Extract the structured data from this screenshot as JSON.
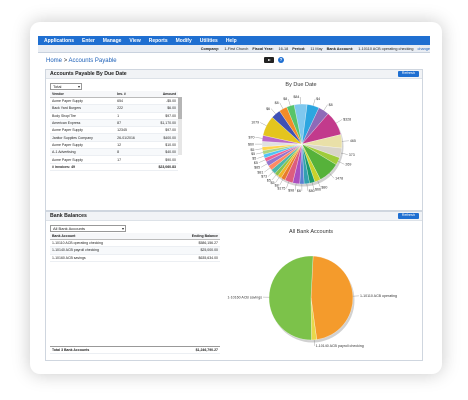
{
  "menu": [
    "Applications",
    "Enter",
    "Manage",
    "View",
    "Reports",
    "Modify",
    "Utilities",
    "Help"
  ],
  "info": {
    "company_label": "Company:",
    "company": "1-First Church",
    "fy_label": "Fiscal Year:",
    "fy": "16-18",
    "period_label": "Period:",
    "period": "11 May",
    "bank_label": "Bank Account:",
    "bank": "1-10110 ACB operating checking",
    "change": "change"
  },
  "breadcrumb": {
    "home": "Home",
    "sep": ">",
    "current": "Accounts Payable"
  },
  "ap": {
    "title": "Accounts Payable By Due Date",
    "refresh": "Refresh",
    "filter": "Total",
    "columns": [
      "Vendor",
      "Inv. #",
      "Amount"
    ],
    "rows": [
      [
        "Acme Paper Supply",
        "654",
        "-$5.00"
      ],
      [
        "Back Yard Burgers",
        "222",
        "$6.00"
      ],
      [
        "Body Shop/Tire",
        "1",
        "$97.00"
      ],
      [
        "American Express",
        "87",
        "$1,170.00"
      ],
      [
        "Acme Paper Supply",
        "12345",
        "$97.00"
      ],
      [
        "Janitor Supplies Company",
        "26-01/2016",
        "$400.00"
      ],
      [
        "Acme Paper Supply",
        "12",
        "$10.00"
      ],
      [
        "A-1 Advertising",
        "8",
        "$40.00"
      ],
      [
        "Acme Paper Supply",
        "17",
        "$90.00"
      ]
    ],
    "total_label": "# invoices: 49",
    "total": "$23,060.83",
    "chart_title": "By Due Date"
  },
  "bank_balances": {
    "title": "Bank Balances",
    "refresh": "Refresh",
    "filter": "All Bank Accounts",
    "columns": [
      "Bank Account",
      "Ending Balance"
    ],
    "rows": [
      [
        "1-10110 ACB operating checking",
        "$586,156.27"
      ],
      [
        "1-10140 ACB payroll checking",
        "$25,000.00"
      ],
      [
        "1-10160 ACB savings",
        "$635,634.00"
      ]
    ],
    "total_label": "Total 3 Bank Accounts",
    "total": "$1,246,790.27",
    "chart_title": "All Bank Accounts"
  },
  "chart_data": [
    {
      "type": "pie",
      "title": "By Due Date",
      "labels": [
        "$84",
        "$4",
        "$8",
        "$328",
        "465",
        "373",
        "269",
        "1478",
        "$80",
        "$66",
        "$80",
        "$6",
        "$98",
        "$175",
        "$8",
        "$5",
        "$5",
        "$73",
        "$81",
        "$85",
        "$5",
        "$5",
        "$5",
        "$5",
        "$60",
        "$70",
        "1079",
        "$6",
        "$8",
        "$8"
      ],
      "values": [
        4.8,
        4.5,
        4.0,
        9.0,
        5.0,
        3.6,
        2.8,
        8.0,
        2.2,
        2.0,
        2.0,
        1.6,
        2.6,
        3.0,
        1.6,
        1.4,
        1.4,
        1.8,
        1.8,
        1.8,
        1.4,
        1.4,
        1.4,
        1.4,
        2.0,
        2.2,
        7.5,
        3.5,
        3.0,
        2.8
      ],
      "colors": [
        "#7fc8ee",
        "#2ca6e0",
        "#8e6ab8",
        "#c23a8c",
        "#e9e0a8",
        "#d8d4c8",
        "#9fcc3b",
        "#56b23a",
        "#c9d22b",
        "#1b9a6c",
        "#33a0b0",
        "#5b7fd1",
        "#aa4fbf",
        "#dd5d7e",
        "#e87c2b",
        "#f0b429",
        "#8bc34a",
        "#4db6ac",
        "#ff8a65",
        "#9575cd",
        "#f06292",
        "#4fc3f7",
        "#aed581",
        "#ffd54f",
        "#e0e0e0",
        "#ba68c8",
        "#e4c51e",
        "#3f51b5",
        "#f28c28",
        "#58c46a"
      ]
    },
    {
      "type": "pie",
      "title": "All Bank Accounts",
      "labels": [
        "1-10110 ACB operating",
        "1-10140 ACB payroll checking",
        "1-10160 ACB savings"
      ],
      "values": [
        586156.27,
        25000.0,
        635634.0
      ],
      "colors": [
        "#f49b2c",
        "#e8d84a",
        "#7cc24a"
      ]
    }
  ]
}
